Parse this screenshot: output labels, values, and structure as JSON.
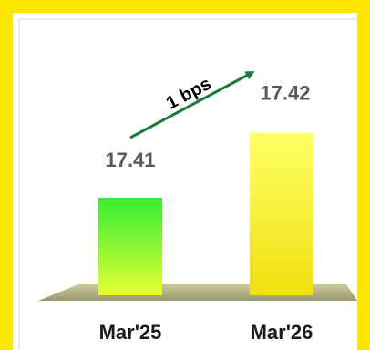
{
  "chart_data": {
    "type": "bar",
    "categories": [
      "Mar'25",
      "Mar'26"
    ],
    "values": [
      17.41,
      17.42
    ],
    "value_labels": [
      "17.41",
      "17.42"
    ],
    "annotation": "1 bps",
    "title": "",
    "xlabel": "",
    "ylabel": "",
    "grid": false,
    "legend": "none"
  },
  "colors": {
    "frame_border": "#ffe600",
    "bar_1_top": "#33ee33",
    "bar_1_bottom": "#e6ff33",
    "bar_2_top": "#ffff66",
    "bar_2_bottom": "#f0e010",
    "floor": "#b5b58a",
    "arrow": "#1a7a3a",
    "value_text": "#595959",
    "category_text": "#1a1a1a"
  }
}
